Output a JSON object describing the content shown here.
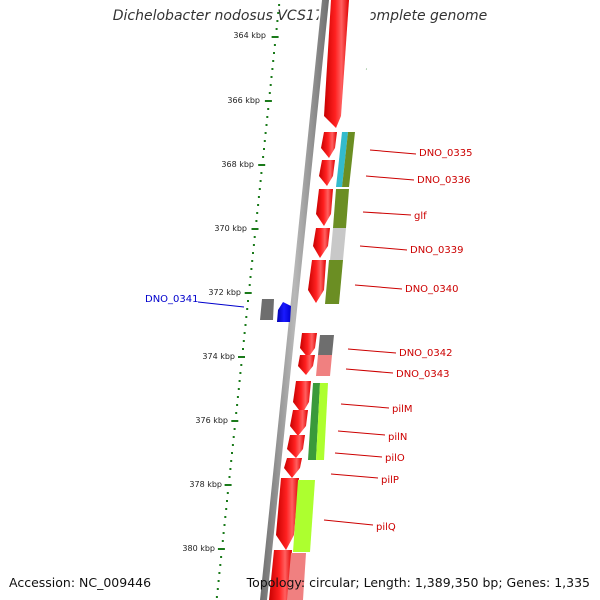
{
  "title": "Dichelobacter nodosus VCS1703A, complete genome",
  "footer": {
    "accession": "Accession: NC_009446",
    "topology": "Topology: circular; Length: 1,389,350 bp; Genes: 1,335"
  },
  "scale": {
    "unit": "kbp",
    "labels": [
      "364 kbp",
      "366 kbp",
      "368 kbp",
      "370 kbp",
      "372 kbp",
      "374 kbp",
      "376 kbp",
      "378 kbp",
      "380 kbp"
    ]
  },
  "colors": {
    "backbone": "#8c8c8c",
    "gene_primary": "#ff0000",
    "gene_forward_strand": "#0000ff",
    "reverse_label": "#cc0000",
    "forward_label": "#0000cc",
    "ticks": "#1a7a1a",
    "cyan": "#33bbcc",
    "olive": "#6b8e23",
    "grey": "#6e6e6e",
    "light_grey": "#c8c8c8",
    "pink": "#f08080",
    "lime": "#adff2f",
    "green": "#3a9a3a"
  },
  "genes": [
    {
      "label": "DNO_0341",
      "strand": "forward"
    },
    {
      "label": "DNO_0335",
      "strand": "reverse"
    },
    {
      "label": "DNO_0336",
      "strand": "reverse"
    },
    {
      "label": "glf",
      "strand": "reverse"
    },
    {
      "label": "DNO_0339",
      "strand": "reverse"
    },
    {
      "label": "DNO_0340",
      "strand": "reverse"
    },
    {
      "label": "DNO_0342",
      "strand": "reverse"
    },
    {
      "label": "DNO_0343",
      "strand": "reverse"
    },
    {
      "label": "pilM",
      "strand": "reverse"
    },
    {
      "label": "pilN",
      "strand": "reverse"
    },
    {
      "label": "pilO",
      "strand": "reverse"
    },
    {
      "label": "pilP",
      "strand": "reverse"
    },
    {
      "label": "pilQ",
      "strand": "reverse"
    }
  ]
}
